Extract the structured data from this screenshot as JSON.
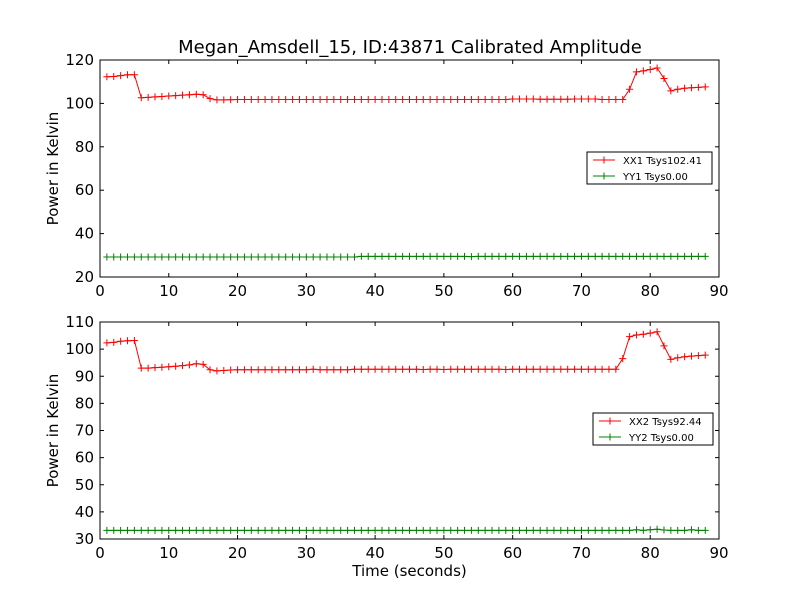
{
  "figure": {
    "title": "Megan_Amsdell_15, ID:43871 Calibrated Amplitude"
  },
  "chart_data": [
    {
      "type": "line",
      "title": "Megan_Amsdell_15, ID:43871 Calibrated Amplitude",
      "xlabel": "",
      "ylabel": "Power in Kelvin",
      "xlim": [
        0,
        90
      ],
      "ylim": [
        20,
        120
      ],
      "xticks": [
        0,
        10,
        20,
        30,
        40,
        50,
        60,
        70,
        80,
        90
      ],
      "yticks": [
        20,
        40,
        60,
        80,
        100,
        120
      ],
      "grid": false,
      "legend_position": "center-right",
      "x": [
        1,
        2,
        3,
        4,
        5,
        6,
        7,
        8,
        9,
        10,
        11,
        12,
        13,
        14,
        15,
        16,
        17,
        18,
        19,
        20,
        21,
        22,
        23,
        24,
        25,
        26,
        27,
        28,
        29,
        30,
        31,
        32,
        33,
        34,
        35,
        36,
        37,
        38,
        39,
        40,
        41,
        42,
        43,
        44,
        45,
        46,
        47,
        48,
        49,
        50,
        51,
        52,
        53,
        54,
        55,
        56,
        57,
        58,
        59,
        60,
        61,
        62,
        63,
        64,
        65,
        66,
        67,
        68,
        69,
        70,
        71,
        72,
        73,
        74,
        75,
        76,
        77,
        78,
        79,
        80,
        81,
        82,
        83,
        84,
        85,
        86,
        87,
        88
      ],
      "series": [
        {
          "name": "XX1 Tsys102.41",
          "color": "#ff0000",
          "values": [
            112.3,
            112.4,
            112.8,
            113.2,
            113.2,
            102.6,
            102.8,
            103.0,
            103.2,
            103.4,
            103.6,
            103.8,
            104.0,
            104.2,
            104.0,
            102.2,
            101.6,
            101.6,
            101.7,
            101.8,
            101.8,
            101.8,
            101.8,
            101.8,
            101.8,
            101.8,
            101.8,
            101.8,
            101.8,
            101.8,
            101.8,
            101.8,
            101.8,
            101.8,
            101.8,
            101.8,
            101.8,
            101.8,
            101.8,
            101.8,
            101.8,
            101.8,
            101.8,
            101.8,
            101.8,
            101.8,
            101.8,
            101.8,
            101.8,
            101.8,
            101.8,
            101.8,
            101.8,
            101.8,
            101.8,
            101.8,
            101.8,
            101.8,
            101.8,
            102.0,
            102.0,
            102.0,
            102.0,
            101.9,
            101.9,
            101.9,
            101.9,
            101.9,
            102.0,
            102.0,
            102.0,
            102.0,
            101.8,
            101.8,
            101.8,
            101.8,
            106.5,
            114.5,
            115.0,
            115.6,
            116.3,
            111.5,
            105.8,
            106.5,
            107.0,
            107.2,
            107.4,
            107.6
          ]
        },
        {
          "name": "YY1 Tsys0.00",
          "color": "#008000",
          "values": [
            29.2,
            29.2,
            29.2,
            29.2,
            29.2,
            29.2,
            29.2,
            29.2,
            29.2,
            29.2,
            29.2,
            29.2,
            29.2,
            29.2,
            29.2,
            29.2,
            29.2,
            29.2,
            29.2,
            29.2,
            29.2,
            29.2,
            29.2,
            29.2,
            29.2,
            29.2,
            29.2,
            29.2,
            29.2,
            29.2,
            29.2,
            29.2,
            29.2,
            29.2,
            29.2,
            29.2,
            29.2,
            29.5,
            29.5,
            29.5,
            29.5,
            29.5,
            29.5,
            29.5,
            29.5,
            29.5,
            29.5,
            29.5,
            29.5,
            29.5,
            29.5,
            29.5,
            29.5,
            29.4,
            29.5,
            29.5,
            29.5,
            29.5,
            29.5,
            29.5,
            29.5,
            29.5,
            29.5,
            29.5,
            29.5,
            29.5,
            29.5,
            29.5,
            29.5,
            29.5,
            29.5,
            29.5,
            29.5,
            29.5,
            29.5,
            29.5,
            29.5,
            29.5,
            29.5,
            29.5,
            29.5,
            29.5,
            29.5,
            29.5,
            29.5,
            29.5,
            29.5,
            29.5
          ]
        }
      ]
    },
    {
      "type": "line",
      "title": "",
      "xlabel": "Time (seconds)",
      "ylabel": "Power in Kelvin",
      "xlim": [
        0,
        90
      ],
      "ylim": [
        30,
        110
      ],
      "xticks": [
        0,
        10,
        20,
        30,
        40,
        50,
        60,
        70,
        80,
        90
      ],
      "yticks": [
        30,
        40,
        50,
        60,
        70,
        80,
        90,
        100,
        110
      ],
      "grid": false,
      "legend_position": "center-right",
      "x": [
        1,
        2,
        3,
        4,
        5,
        6,
        7,
        8,
        9,
        10,
        11,
        12,
        13,
        14,
        15,
        16,
        17,
        18,
        19,
        20,
        21,
        22,
        23,
        24,
        25,
        26,
        27,
        28,
        29,
        30,
        31,
        32,
        33,
        34,
        35,
        36,
        37,
        38,
        39,
        40,
        41,
        42,
        43,
        44,
        45,
        46,
        47,
        48,
        49,
        50,
        51,
        52,
        53,
        54,
        55,
        56,
        57,
        58,
        59,
        60,
        61,
        62,
        63,
        64,
        65,
        66,
        67,
        68,
        69,
        70,
        71,
        72,
        73,
        74,
        75,
        76,
        77,
        78,
        79,
        80,
        81,
        82,
        83,
        84,
        85,
        86,
        87,
        88
      ],
      "series": [
        {
          "name": "XX2 Tsys92.44",
          "color": "#ff0000",
          "values": [
            102.3,
            102.5,
            102.9,
            103.1,
            103.2,
            93.0,
            93.0,
            93.2,
            93.3,
            93.5,
            93.7,
            93.9,
            94.2,
            94.6,
            94.4,
            92.4,
            92.0,
            92.1,
            92.3,
            92.4,
            92.4,
            92.4,
            92.4,
            92.4,
            92.4,
            92.4,
            92.4,
            92.4,
            92.4,
            92.4,
            92.6,
            92.4,
            92.4,
            92.4,
            92.4,
            92.4,
            92.6,
            92.6,
            92.6,
            92.6,
            92.6,
            92.6,
            92.6,
            92.6,
            92.6,
            92.6,
            92.5,
            92.6,
            92.6,
            92.5,
            92.6,
            92.6,
            92.6,
            92.6,
            92.6,
            92.6,
            92.6,
            92.6,
            92.5,
            92.6,
            92.6,
            92.6,
            92.6,
            92.6,
            92.6,
            92.6,
            92.6,
            92.6,
            92.6,
            92.6,
            92.6,
            92.6,
            92.6,
            92.6,
            92.6,
            96.5,
            104.6,
            105.2,
            105.5,
            105.9,
            106.4,
            101.2,
            96.2,
            96.8,
            97.2,
            97.4,
            97.6,
            97.8
          ]
        },
        {
          "name": "YY2 Tsys0.00",
          "color": "#008000",
          "values": [
            33.2,
            33.2,
            33.2,
            33.2,
            33.2,
            33.2,
            33.2,
            33.2,
            33.2,
            33.2,
            33.2,
            33.2,
            33.2,
            33.2,
            33.2,
            33.2,
            33.2,
            33.2,
            33.2,
            33.2,
            33.2,
            33.2,
            33.2,
            33.2,
            33.2,
            33.2,
            33.2,
            33.2,
            33.2,
            33.2,
            33.2,
            33.2,
            33.2,
            33.2,
            33.2,
            33.2,
            33.2,
            33.2,
            33.2,
            33.2,
            33.2,
            33.2,
            33.2,
            33.2,
            33.2,
            33.2,
            33.2,
            33.2,
            33.2,
            33.2,
            33.2,
            33.2,
            33.2,
            33.2,
            33.2,
            33.2,
            33.2,
            33.2,
            33.2,
            33.2,
            33.2,
            33.2,
            33.2,
            33.2,
            33.2,
            33.2,
            33.2,
            33.2,
            33.2,
            33.2,
            33.2,
            33.2,
            33.2,
            33.2,
            33.2,
            33.2,
            33.2,
            33.4,
            33.2,
            33.4,
            33.6,
            33.3,
            33.2,
            33.2,
            33.2,
            33.4,
            33.2,
            33.2
          ]
        }
      ]
    }
  ]
}
